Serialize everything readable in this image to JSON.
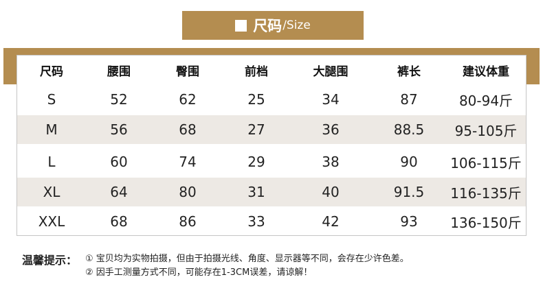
{
  "title": {
    "main": "尺码",
    "sub": "/Size"
  },
  "table": {
    "headers": [
      "尺码",
      "腰围",
      "臀围",
      "前档",
      "大腿围",
      "裤长",
      "建议体重"
    ],
    "rows": [
      [
        "S",
        "52",
        "62",
        "25",
        "34",
        "87",
        "80-94斤"
      ],
      [
        "M",
        "56",
        "68",
        "27",
        "36",
        "88.5",
        "95-105斤"
      ],
      [
        "L",
        "60",
        "74",
        "29",
        "38",
        "90",
        "106-115斤"
      ],
      [
        "XL",
        "64",
        "80",
        "31",
        "40",
        "91.5",
        "116-135斤"
      ],
      [
        "XXL",
        "68",
        "86",
        "33",
        "42",
        "93",
        "136-150斤"
      ]
    ]
  },
  "notes": {
    "title": "温馨提示：",
    "items": [
      "① 宝贝均为实物拍摄，但由于拍摄光线、角度、显示器等不同，会存在少许色差。",
      "② 因手工测量方式不同，可能存在1-3CM误差，请谅解！"
    ]
  },
  "colors": {
    "accent": "#b48d50",
    "row_alt": "#ede9e4",
    "border": "#c5c5c5"
  }
}
